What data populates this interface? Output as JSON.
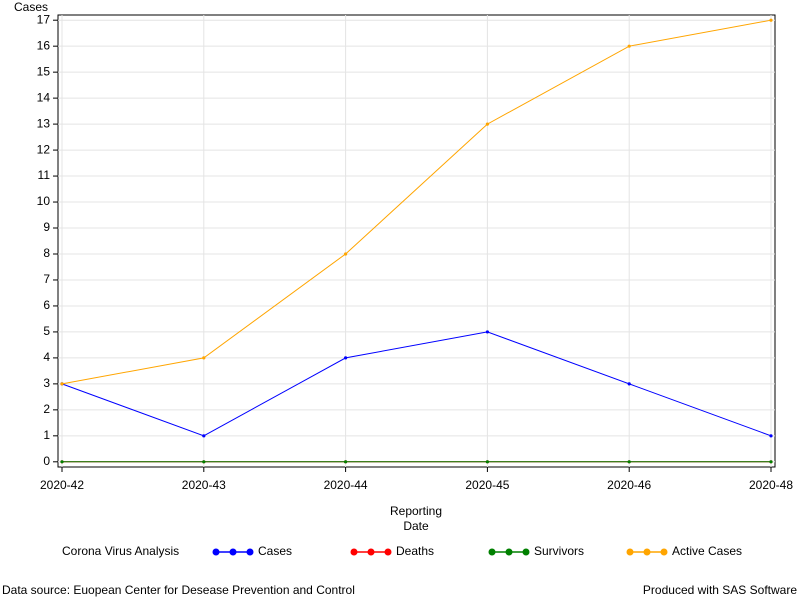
{
  "chart_data": {
    "type": "line",
    "y_label": "Cases",
    "x_label": "Reporting Date",
    "categories": [
      "2020-42",
      "2020-43",
      "2020-44",
      "2020-45",
      "2020-46",
      "2020-48"
    ],
    "series": [
      {
        "name": "Cases",
        "color": "#0000ff",
        "values": [
          3,
          1,
          4,
          5,
          3,
          1
        ]
      },
      {
        "name": "Deaths",
        "color": "#ff0000",
        "values": [
          0,
          0,
          0,
          0,
          0,
          0
        ]
      },
      {
        "name": "Survivors",
        "color": "#008000",
        "values": [
          0,
          0,
          0,
          0,
          0,
          0
        ]
      },
      {
        "name": "Active Cases",
        "color": "#ffa500",
        "values": [
          3,
          4,
          8,
          13,
          16,
          17
        ]
      }
    ],
    "ylim": [
      -0.2,
      17.2
    ],
    "yticks": [
      0,
      1,
      2,
      3,
      4,
      5,
      6,
      7,
      8,
      9,
      10,
      11,
      12,
      13,
      14,
      15,
      16,
      17
    ],
    "grid": true,
    "legend_title": "Corona Virus Analysis",
    "footnote_left": "Data source: Euopean Center for Desease Prevention and Control",
    "footnote_right": "Produced with SAS Software"
  }
}
